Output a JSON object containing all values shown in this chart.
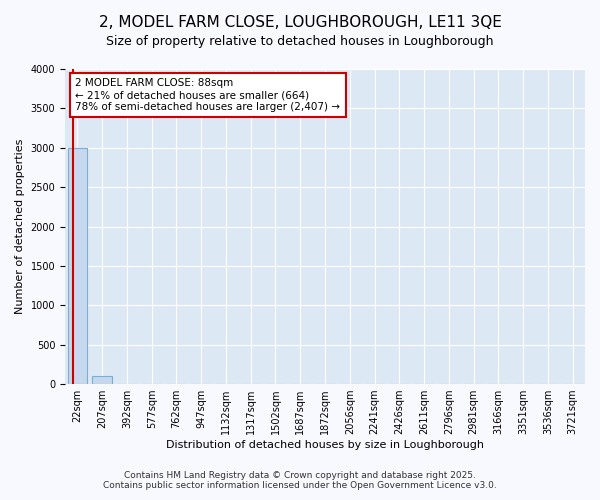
{
  "title": "2, MODEL FARM CLOSE, LOUGHBOROUGH, LE11 3QE",
  "subtitle": "Size of property relative to detached houses in Loughborough",
  "xlabel": "Distribution of detached houses by size in Loughborough",
  "ylabel": "Number of detached properties",
  "bar_values": [
    3000,
    100,
    0,
    0,
    0,
    0,
    0,
    0,
    0,
    0,
    0,
    0,
    0,
    0,
    0,
    0,
    0,
    0,
    0,
    0,
    0
  ],
  "bar_color": "#c5d8ee",
  "bar_edge_color": "#7aaed4",
  "categories": [
    "22sqm",
    "207sqm",
    "392sqm",
    "577sqm",
    "762sqm",
    "947sqm",
    "1132sqm",
    "1317sqm",
    "1502sqm",
    "1687sqm",
    "1872sqm",
    "2056sqm",
    "2241sqm",
    "2426sqm",
    "2611sqm",
    "2796sqm",
    "2981sqm",
    "3166sqm",
    "3351sqm",
    "3536sqm",
    "3721sqm"
  ],
  "red_line_x": -0.18,
  "annotation_text": "2 MODEL FARM CLOSE: 88sqm\n← 21% of detached houses are smaller (664)\n78% of semi-detached houses are larger (2,407) →",
  "annotation_box_facecolor": "#ffffff",
  "annotation_box_edgecolor": "#cc0000",
  "footer1": "Contains HM Land Registry data © Crown copyright and database right 2025.",
  "footer2": "Contains public sector information licensed under the Open Government Licence v3.0.",
  "ylim": [
    0,
    4000
  ],
  "yticks": [
    0,
    500,
    1000,
    1500,
    2000,
    2500,
    3000,
    3500,
    4000
  ],
  "fig_bg_color": "#f8f8ff",
  "plot_bg_color": "#dde8f5",
  "grid_color": "#ffffff",
  "title_fontsize": 11,
  "subtitle_fontsize": 9,
  "tick_fontsize": 7,
  "xlabel_fontsize": 8,
  "ylabel_fontsize": 8,
  "footer_fontsize": 6.5,
  "annotation_fontsize": 7.5
}
